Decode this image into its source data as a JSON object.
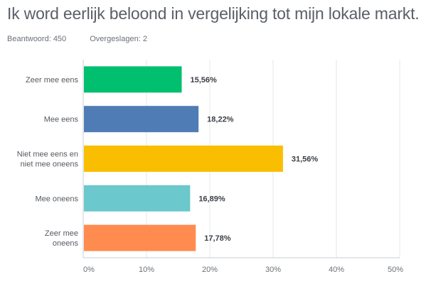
{
  "header": {
    "title": "Ik word eerlijk beloond in vergelijking tot mijn lokale markt.",
    "answered": "Beantwoord: 450",
    "skipped": "Overgeslagen: 2"
  },
  "chart_data": {
    "type": "bar",
    "orientation": "horizontal",
    "categories": [
      [
        "Zeer mee eens"
      ],
      [
        "Mee eens"
      ],
      [
        "Niet mee eens en",
        "niet mee oneens"
      ],
      [
        "Mee oneens"
      ],
      [
        "Zeer mee",
        "oneens"
      ]
    ],
    "values": [
      15.56,
      18.22,
      31.56,
      16.89,
      17.78
    ],
    "data_labels": [
      "15,56%",
      "18,22%",
      "31,56%",
      "16,89%",
      "17,78%"
    ],
    "colors": [
      "#00bf6f",
      "#507cb6",
      "#f9be00",
      "#6bc8cd",
      "#ff8b4f"
    ],
    "xlim": [
      0,
      50
    ],
    "x_ticks": [
      0,
      10,
      20,
      30,
      40,
      50
    ],
    "x_tick_labels": [
      "0%",
      "10%",
      "20%",
      "30%",
      "40%",
      "50%"
    ],
    "grid": true
  }
}
